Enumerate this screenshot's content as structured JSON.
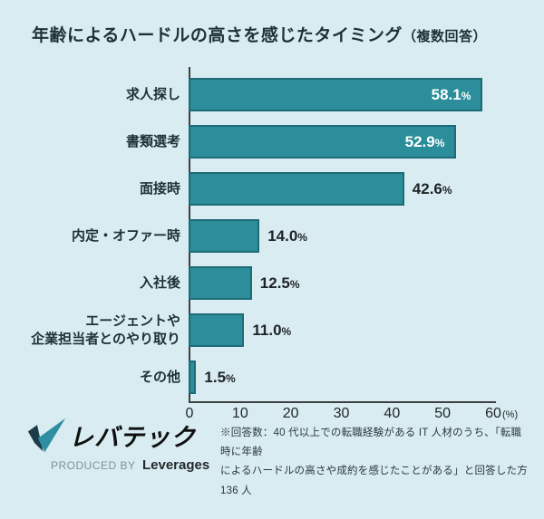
{
  "header": {
    "title": "年齢によるハードルの高さを感じたタイミング",
    "title_suffix": "（複数回答）"
  },
  "chart_data": {
    "type": "bar",
    "orientation": "horizontal",
    "title": "年齢によるハードルの高さを感じたタイミング（複数回答）",
    "categories": [
      "求人探し",
      "書類選考",
      "面接時",
      "内定・オファー時",
      "入社後",
      "エージェントや\n企業担当者とのやり取り",
      "その他"
    ],
    "values": [
      58.1,
      52.9,
      42.6,
      14.0,
      12.5,
      11.0,
      1.5
    ],
    "value_labels": [
      "58.1%",
      "52.9%",
      "42.6%",
      "14.0%",
      "12.5%",
      "11.0%",
      "1.5%"
    ],
    "value_label_position": [
      "inside",
      "inside",
      "outside",
      "outside",
      "outside",
      "outside",
      "outside"
    ],
    "unit": "%",
    "x_ticks": [
      0,
      10,
      20,
      30,
      40,
      50,
      60
    ],
    "x_axis_unit": "(%)",
    "xlim": [
      0,
      60
    ],
    "xlabel": "",
    "ylabel": "",
    "grid": false,
    "legend": "none",
    "bar_color": "#2b8e9a",
    "bar_border_color": "#1c6b76",
    "background_color": "#d8ecf1"
  },
  "footer": {
    "logo_text": "レバテック",
    "logo_icon": "checkmark-logo-icon",
    "produced_by": "PRODUCED BY",
    "company": "Leverages",
    "note_line1": "※回答数：40 代以上での転職経験がある IT 人材のうち、「転職時に年齢",
    "note_line2": "によるハードルの高さや成約を感じたことがある」と回答した方 136 人"
  }
}
